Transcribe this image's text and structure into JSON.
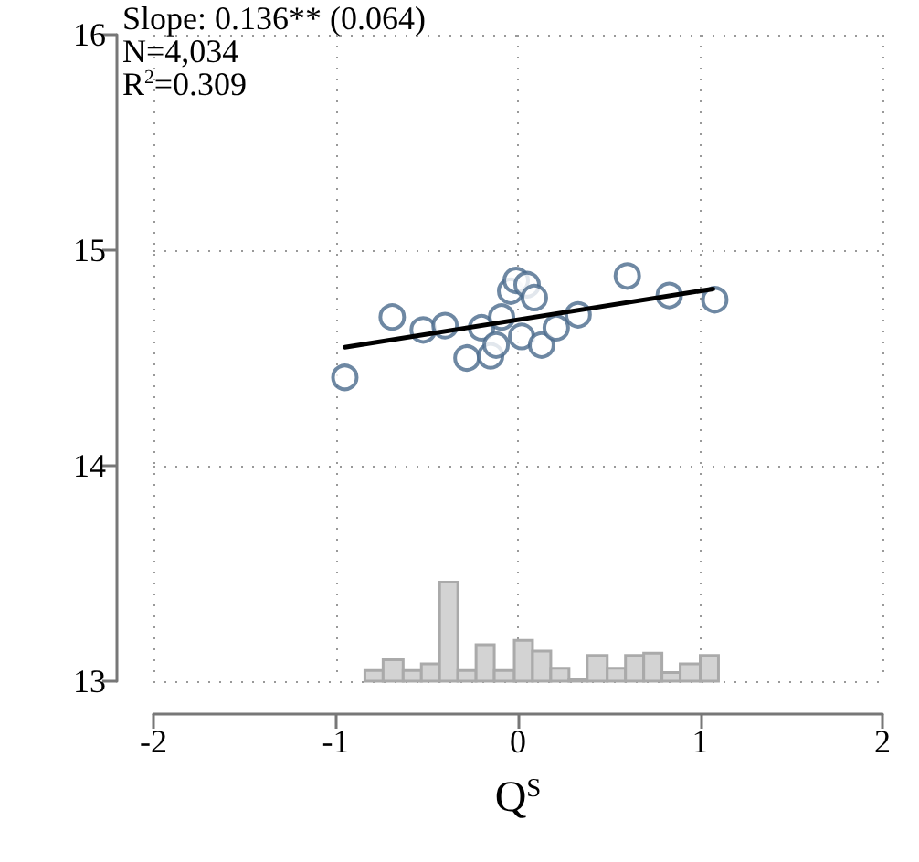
{
  "chart_data": {
    "type": "scatter",
    "xlabel": "Q$^{S}$",
    "annotations": [
      "Slope: 0.136** (0.064)",
      "N=4,034",
      "R$^{2}$=0.309"
    ],
    "xlim": [
      -2,
      2
    ],
    "xticks": [
      -2,
      -1,
      0,
      1,
      2
    ],
    "ylim": [
      13,
      16
    ],
    "yticks": [
      13,
      14,
      15,
      16
    ],
    "grid": true,
    "marker": "circle",
    "series": [
      {
        "type": "histogram",
        "color": "#d3d3d3",
        "bins": [
          -0.84,
          -0.74,
          -0.63,
          -0.53,
          -0.43,
          -0.33,
          -0.23,
          -0.13,
          -0.02,
          0.08,
          0.18,
          0.28,
          0.38,
          0.49,
          0.59,
          0.69,
          0.79,
          0.89,
          1.0,
          1.1
        ],
        "values": [
          13.05,
          13.1,
          13.05,
          13.08,
          13.46,
          13.05,
          13.17,
          13.05,
          13.19,
          13.14,
          13.06,
          13.01,
          13.12,
          13.06,
          13.12,
          13.13,
          13.04,
          13.08,
          13.12
        ]
      },
      {
        "color": "#4a6a8c",
        "x": [
          -0.95,
          -0.69,
          -0.52,
          -0.4,
          -0.28,
          -0.2,
          -0.15,
          -0.12,
          -0.09,
          -0.04,
          -0.01,
          0.05,
          0.02,
          0.09,
          0.13,
          0.21,
          0.33,
          0.6,
          0.83,
          1.08
        ],
        "values": [
          14.41,
          14.69,
          14.63,
          14.65,
          14.5,
          14.64,
          14.51,
          14.56,
          14.69,
          14.81,
          14.86,
          14.84,
          14.6,
          14.78,
          14.56,
          14.64,
          14.7,
          14.88,
          14.79,
          14.77
        ]
      },
      {
        "type": "line",
        "color": "#000000",
        "marker": "none",
        "x": [
          -0.95,
          1.07
        ],
        "values": [
          14.55,
          14.82
        ]
      }
    ]
  }
}
